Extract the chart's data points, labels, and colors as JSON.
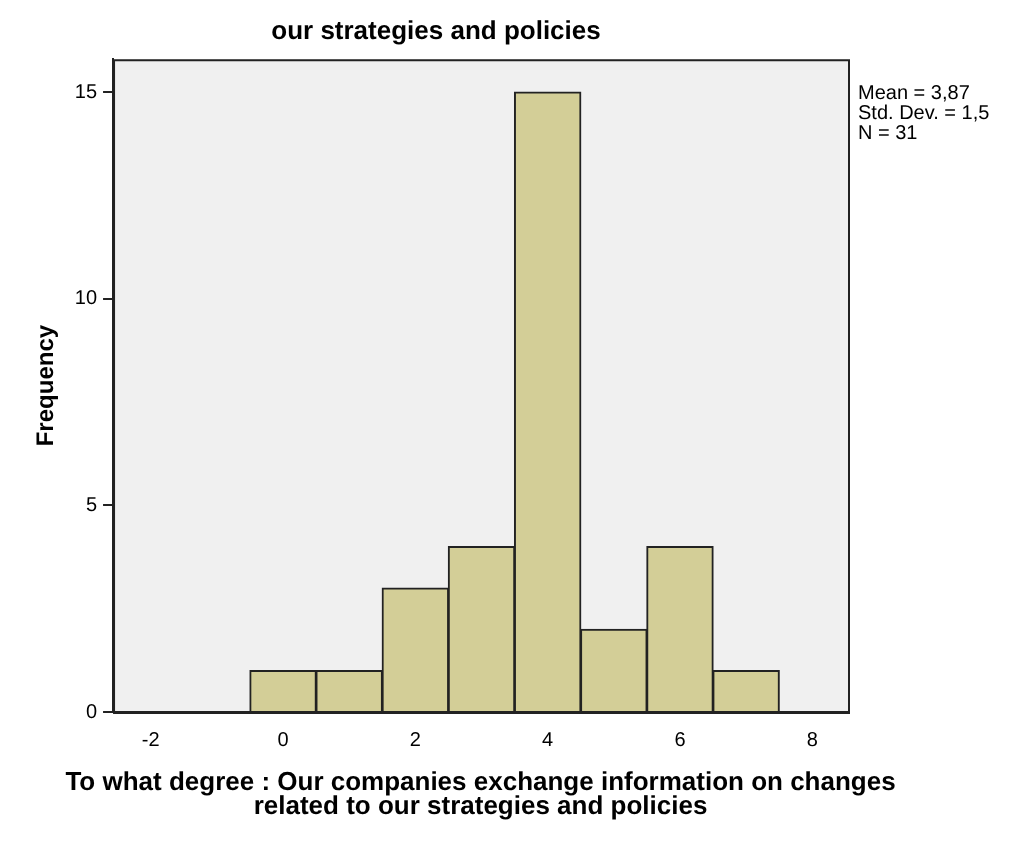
{
  "chart_data": {
    "type": "histogram",
    "title": "our strategies and policies",
    "xlabel": "To what degree : Our companies exchange information on changes related to our strategies and policies",
    "ylabel": "Frequency",
    "bins": [
      -0.5,
      0.5,
      1.5,
      2.5,
      3.5,
      4.5,
      5.5,
      6.5,
      7.5
    ],
    "values": [
      1,
      1,
      3,
      4,
      15,
      2,
      4,
      1
    ],
    "color": "#d3ce97",
    "xlim": [
      -2.57,
      8.54
    ],
    "xticks": [
      -2,
      0,
      2,
      4,
      6,
      8
    ],
    "ylim": [
      0,
      15.8
    ],
    "yticks": [
      0,
      5,
      10,
      15
    ],
    "annotations": [
      "Mean = 3,87",
      "Std. Dev. = 1,5",
      "N = 31"
    ],
    "legend": false
  }
}
